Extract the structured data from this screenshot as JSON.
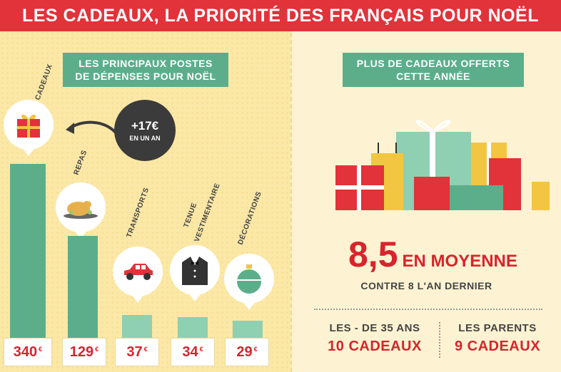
{
  "title": "LES CADEAUX, LA PRIORITÉ DES FRANÇAIS POUR NOËL",
  "left": {
    "banner": [
      "LES PRINCIPAUX POSTES",
      "DE DÉPENSES POUR NOËL"
    ],
    "badge": {
      "big": "+17€",
      "small": "EN UN AN"
    },
    "categories": [
      {
        "label": "CADEAUX",
        "price": "340",
        "value": 340,
        "icon": "gift-icon"
      },
      {
        "label": "REPAS",
        "price": "129",
        "value": 129,
        "icon": "roast-chicken-icon"
      },
      {
        "label": "TRANSPORTS",
        "price": "37",
        "value": 37,
        "icon": "car-icon"
      },
      {
        "label": "TENUE",
        "label2": "VESTIMENTAIRE",
        "price": "34",
        "value": 34,
        "icon": "tuxedo-icon"
      },
      {
        "label": "DÉCORATIONS",
        "price": "29",
        "value": 29,
        "icon": "ornament-icon"
      }
    ],
    "currency": "€"
  },
  "right": {
    "banner": [
      "PLUS DE CADEAUX OFFERTS",
      "CETTE ANNÉE"
    ],
    "stat_number": "8,5",
    "stat_text": "EN MOYENNE",
    "stat_sub": "CONTRE 8 L'AN DERNIER",
    "groups": [
      {
        "label": "LES - DE 35 ANS",
        "value": "10 CADEAUX"
      },
      {
        "label": "LES PARENTS",
        "value": "9 CADEAUX"
      }
    ]
  },
  "colors": {
    "red": "#e2323a",
    "green": "#5cae8b",
    "yellow": "#fbe8a6"
  }
}
